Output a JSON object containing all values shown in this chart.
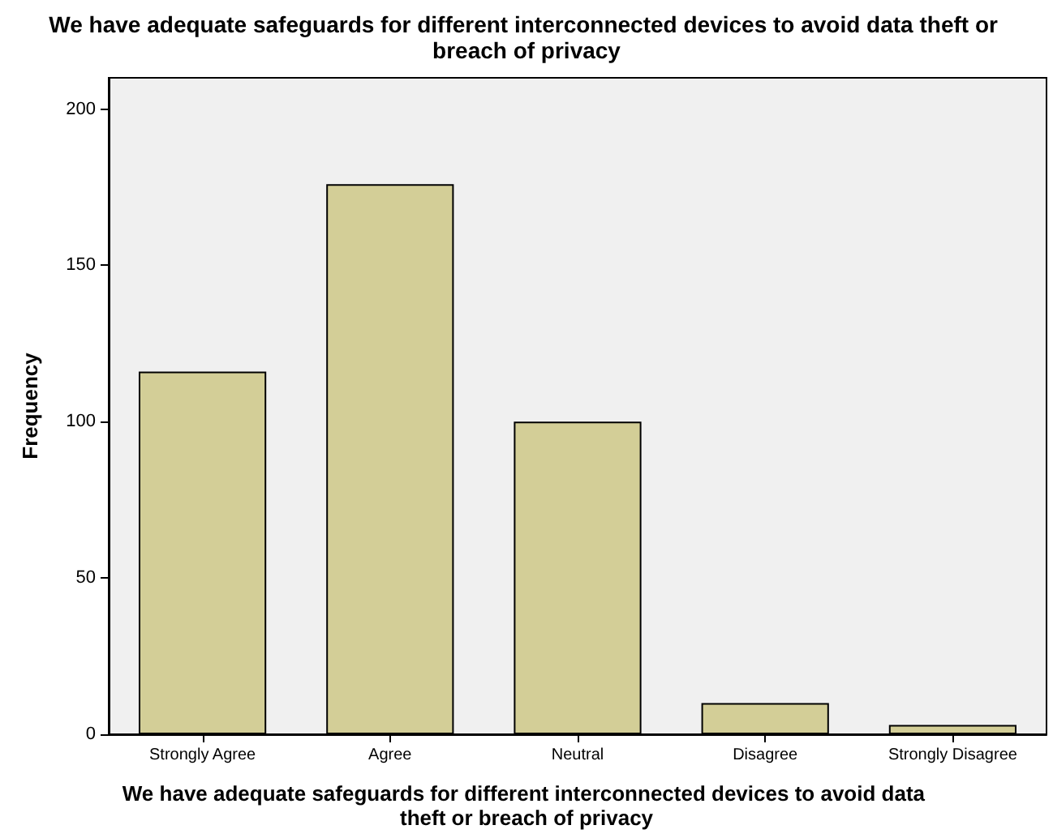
{
  "chart_data": {
    "type": "bar",
    "title": "We have adequate safeguards for different interconnected devices to avoid data theft or breach of privacy",
    "xlabel": "We have adequate safeguards for different interconnected devices to avoid data theft or breach of privacy",
    "ylabel": "Frequency",
    "categories": [
      "Strongly Agree",
      "Agree",
      "Neutral",
      "Disagree",
      "Strongly Disagree"
    ],
    "values": [
      116,
      176,
      100,
      10,
      3
    ],
    "color": "#d3ce97",
    "ylim": [
      0,
      210
    ],
    "yticks": [
      0,
      50,
      100,
      150,
      200
    ],
    "grid": false
  }
}
